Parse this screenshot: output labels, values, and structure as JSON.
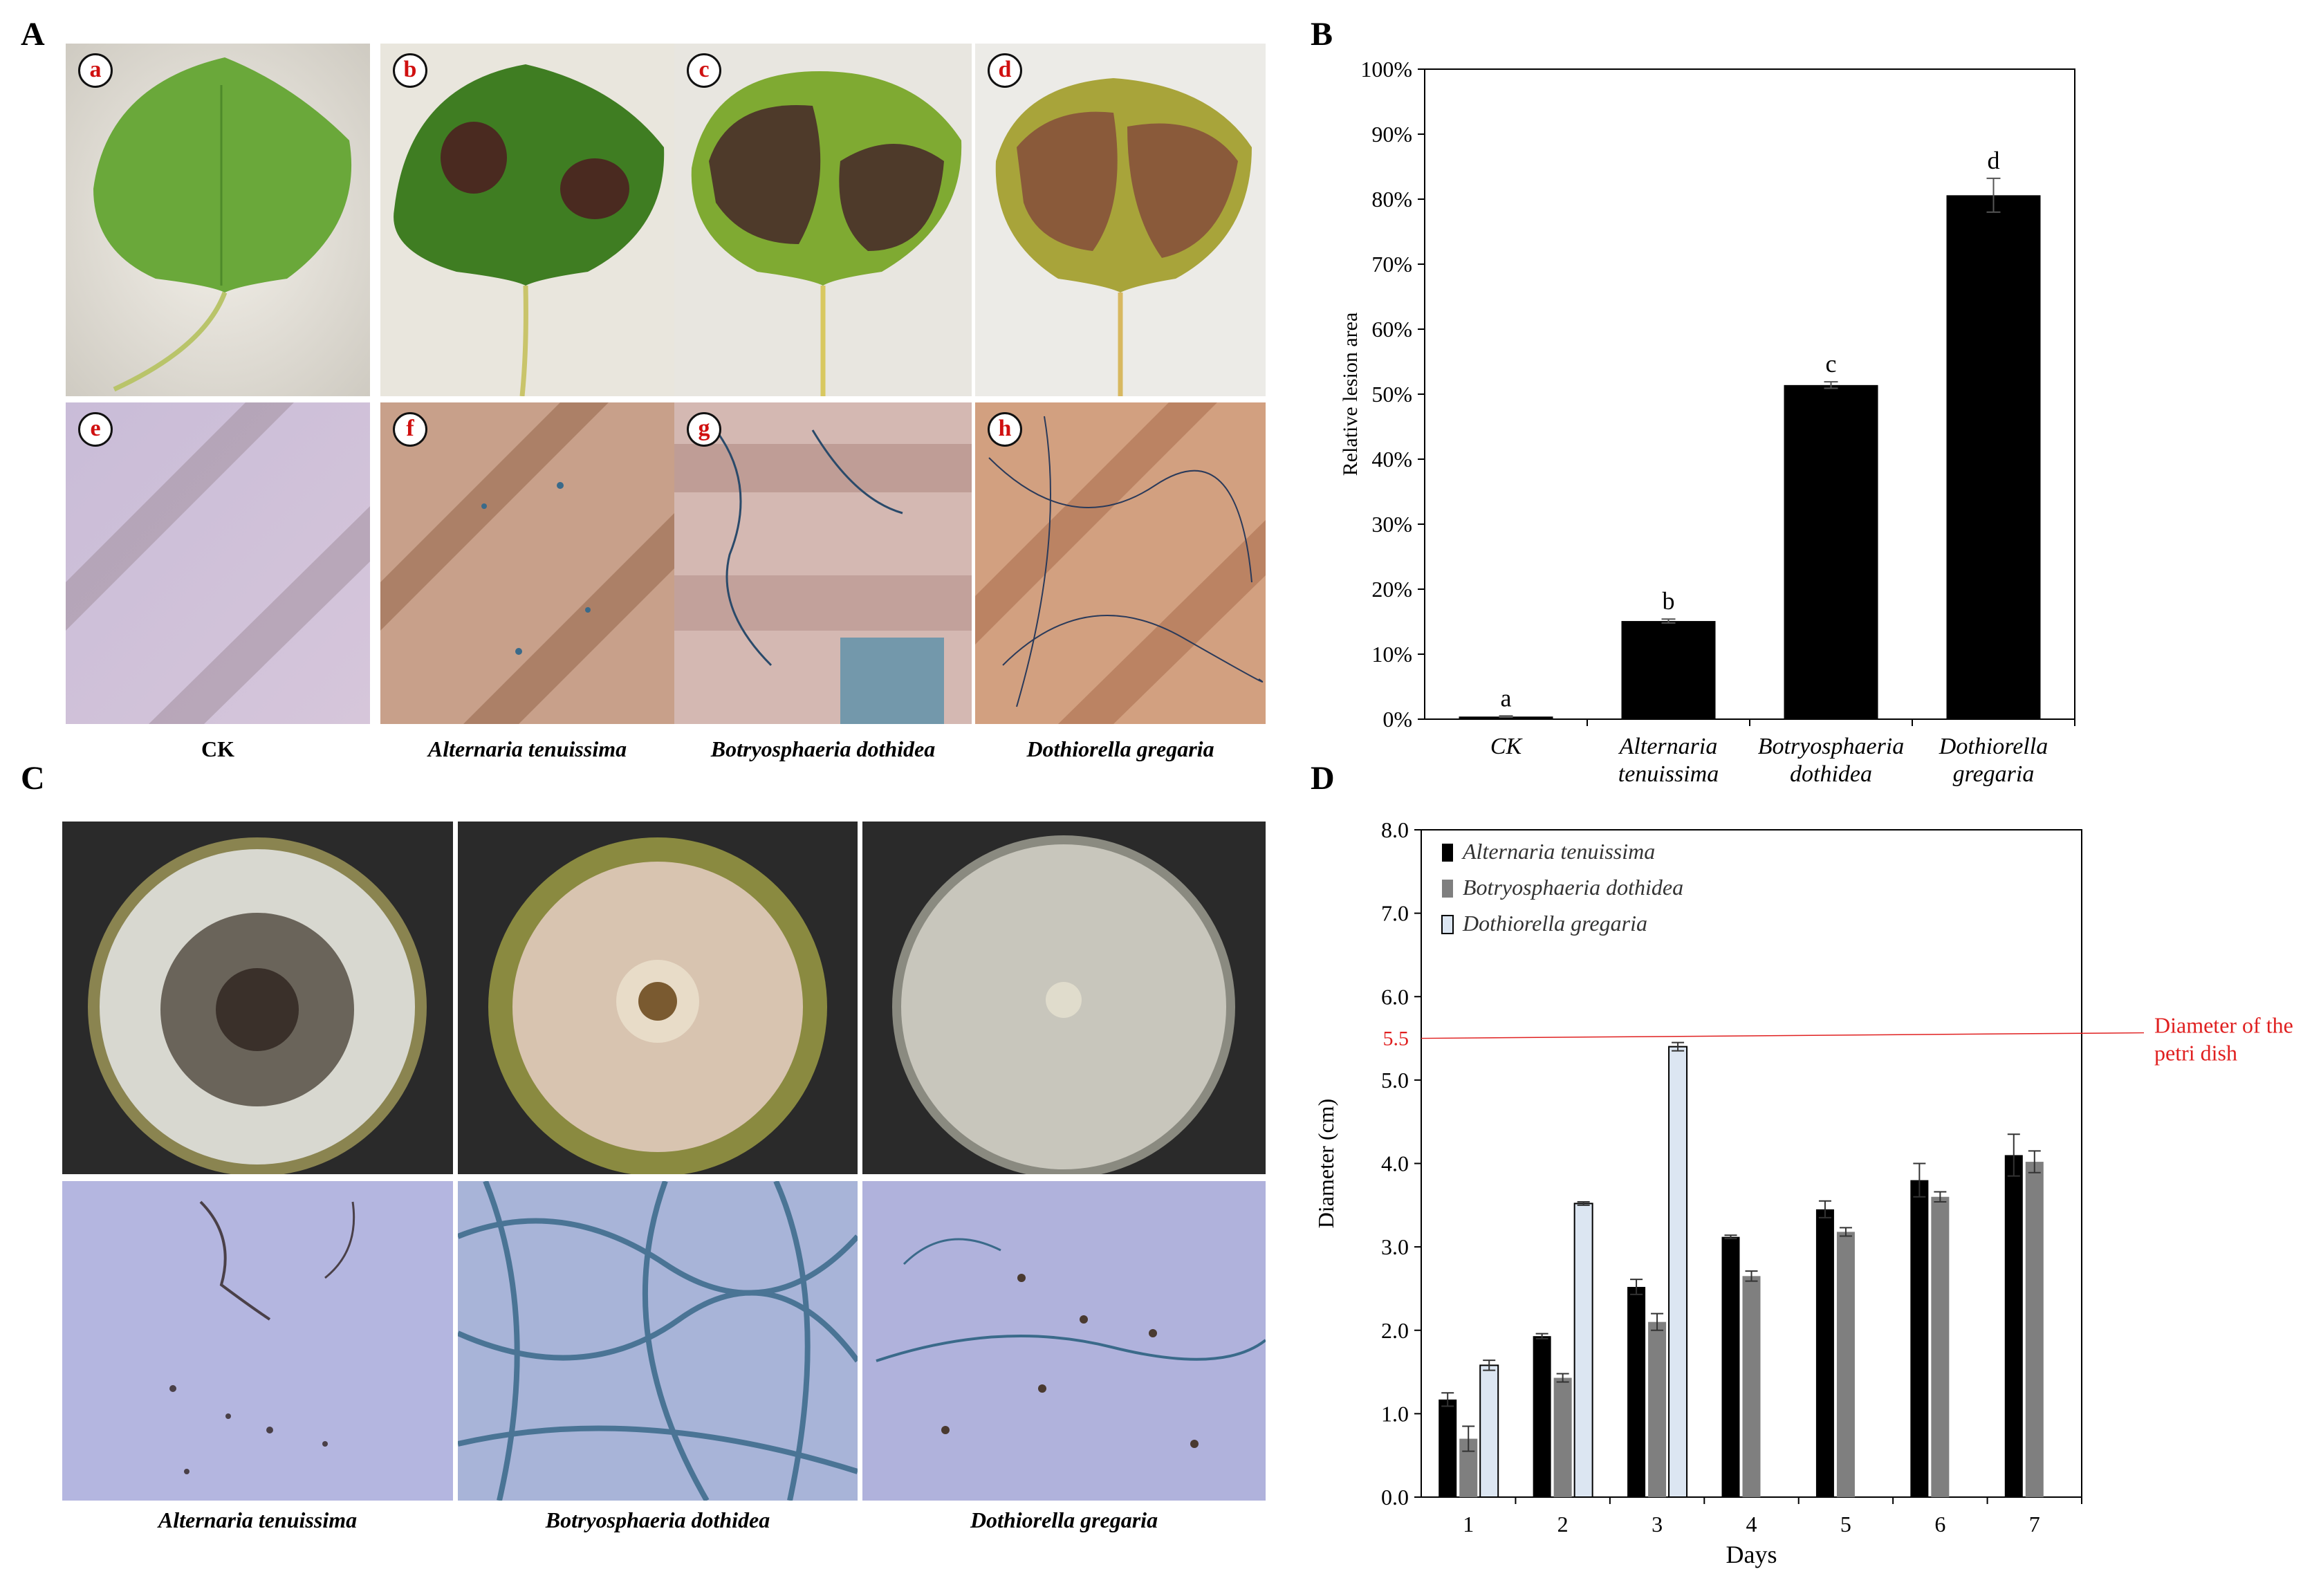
{
  "panels": {
    "A": {
      "letter": "A",
      "badges": [
        "a",
        "b",
        "c",
        "d",
        "e",
        "f",
        "g",
        "h"
      ],
      "captions": [
        "CK",
        "Alternaria tenuissima",
        "Botryosphaeria dothidea",
        "Dothiorella gregaria"
      ]
    },
    "C": {
      "letter": "C",
      "captions": [
        "Alternaria tenuissima",
        "Botryosphaeria dothidea",
        "Dothiorella gregaria"
      ]
    },
    "B": {
      "letter": "B"
    },
    "D": {
      "letter": "D"
    }
  },
  "chart_data": [
    {
      "panel": "B",
      "type": "bar",
      "categories": [
        [
          "CK"
        ],
        [
          "Alternaria",
          "tenuissima"
        ],
        [
          "Botryosphaeria",
          "dothidea"
        ],
        [
          "Dothiorella",
          "gregaria"
        ]
      ],
      "values": [
        0.004,
        0.151,
        0.514,
        0.806
      ],
      "errors": [
        0.001,
        0.003,
        0.005,
        0.026
      ],
      "significance_letters": [
        "a",
        "b",
        "c",
        "d"
      ],
      "ylabel": "Relative lesion area",
      "xlabel": "",
      "ylim": [
        0,
        1
      ],
      "yticks": [
        "0%",
        "10%",
        "20%",
        "30%",
        "40%",
        "50%",
        "60%",
        "70%",
        "80%",
        "90%",
        "100%"
      ],
      "bar_color": "#000000",
      "grid": false
    },
    {
      "panel": "D",
      "type": "bar",
      "categories": [
        "1",
        "2",
        "3",
        "4",
        "5",
        "6",
        "7"
      ],
      "series": [
        {
          "name": "Alternaria tenuissima",
          "color": "#000000",
          "values": [
            1.17,
            1.93,
            2.52,
            3.12,
            3.45,
            3.8,
            4.1
          ],
          "errors": [
            0.08,
            0.03,
            0.09,
            0.02,
            0.1,
            0.2,
            0.25
          ]
        },
        {
          "name": "Botryosphaeria dothidea",
          "color": "#7f7f7f",
          "values": [
            0.7,
            1.43,
            2.1,
            2.65,
            3.18,
            3.6,
            4.02
          ],
          "errors": [
            0.15,
            0.05,
            0.1,
            0.06,
            0.05,
            0.06,
            0.13
          ]
        },
        {
          "name": "Dothiorella gregaria",
          "color": "#dce6f2",
          "values": [
            1.58,
            3.52,
            5.4,
            null,
            null,
            null,
            null
          ],
          "errors": [
            0.06,
            0.02,
            0.05,
            null,
            null,
            null,
            null
          ]
        }
      ],
      "xlabel": "Days",
      "ylabel": "Diameter (cm)",
      "ylim": [
        0,
        8
      ],
      "yticks": [
        "0.0",
        "1.0",
        "2.0",
        "3.0",
        "4.0",
        "5.0",
        "6.0",
        "7.0",
        "8.0"
      ],
      "reference_line": {
        "value": 5.5,
        "label": "5.5",
        "annotation": [
          "Diameter of the",
          "petri dish"
        ],
        "color": "#e02020"
      },
      "legend_position": "top-left",
      "grid": false
    }
  ]
}
